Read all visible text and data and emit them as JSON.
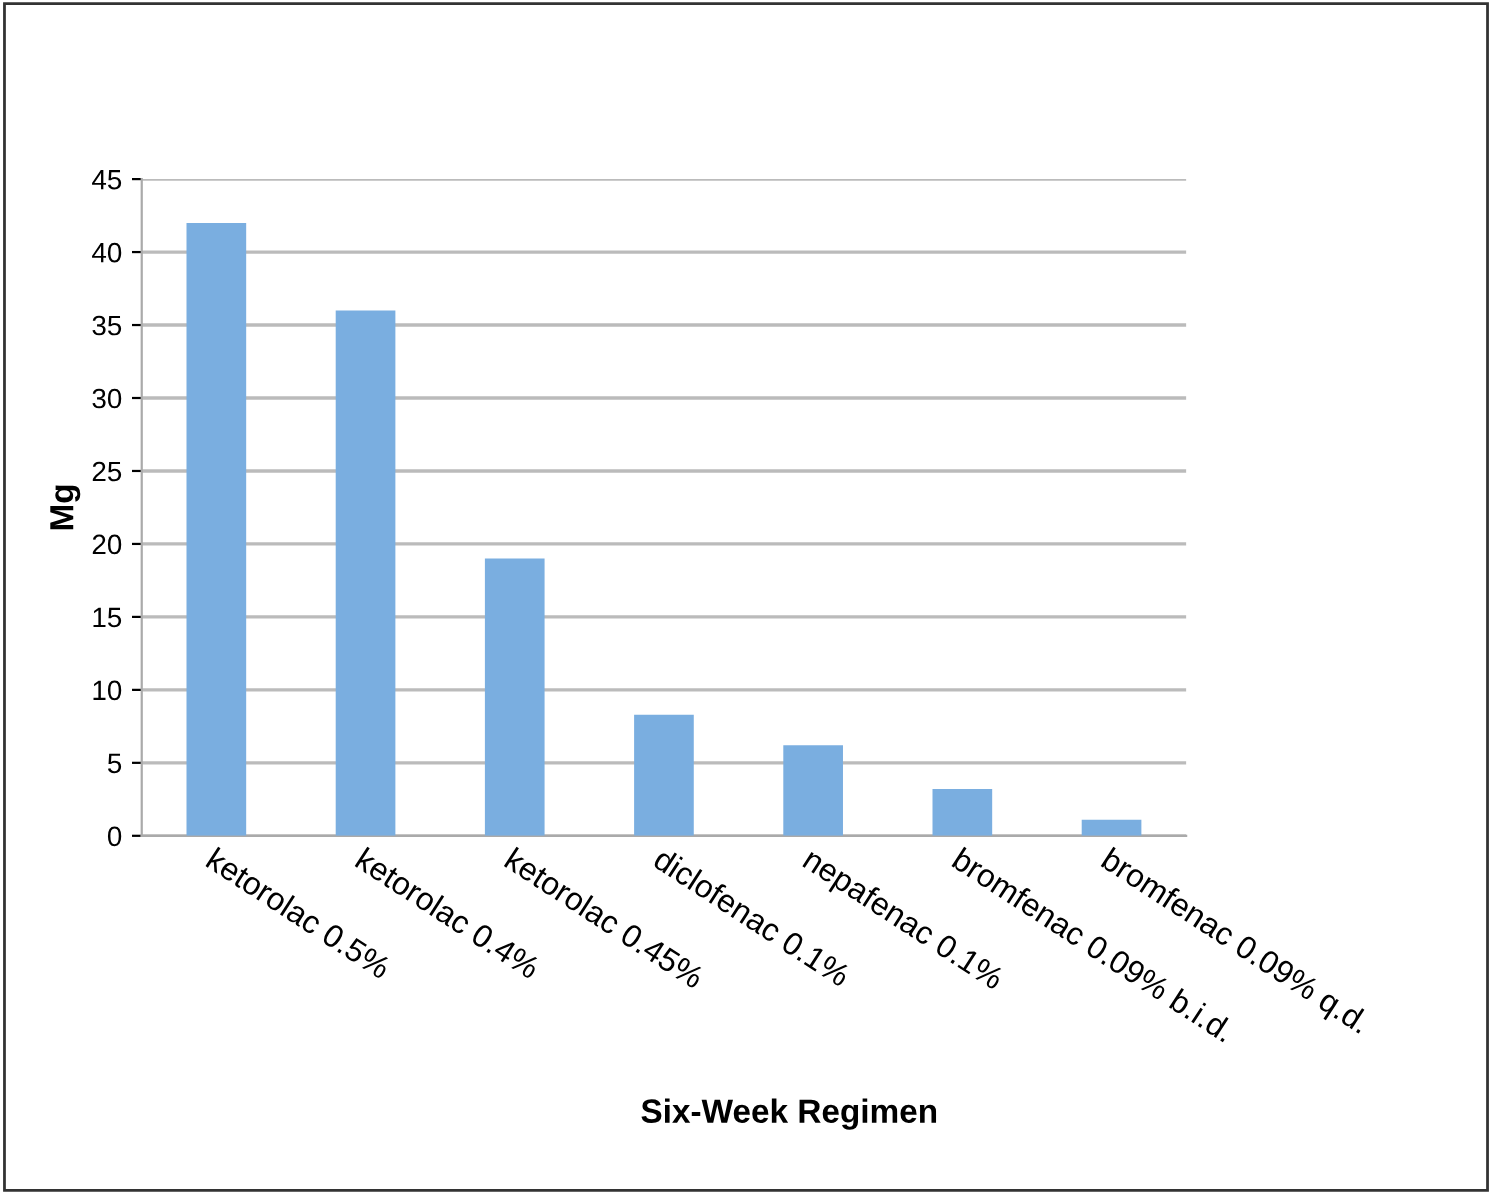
{
  "chart_data": {
    "type": "bar",
    "xlabel": "Six-Week Regimen",
    "ylabel": "Mg",
    "categories": [
      "ketorolac 0.5%",
      "ketorolac 0.4%",
      "ketorolac 0.45%",
      "diclofenac 0.1%",
      "nepafenac 0.1%",
      "bromfenac 0.09% b.i.d.",
      "bromfenac 0.09% q.d."
    ],
    "values": [
      42,
      36,
      19,
      8.3,
      6.2,
      3.2,
      1.1
    ],
    "color": "#7aaee0",
    "ylim": [
      0,
      45
    ],
    "yticks": [
      0,
      5,
      10,
      15,
      20,
      25,
      30,
      35,
      40,
      45
    ],
    "grid": "y",
    "legend": false
  }
}
